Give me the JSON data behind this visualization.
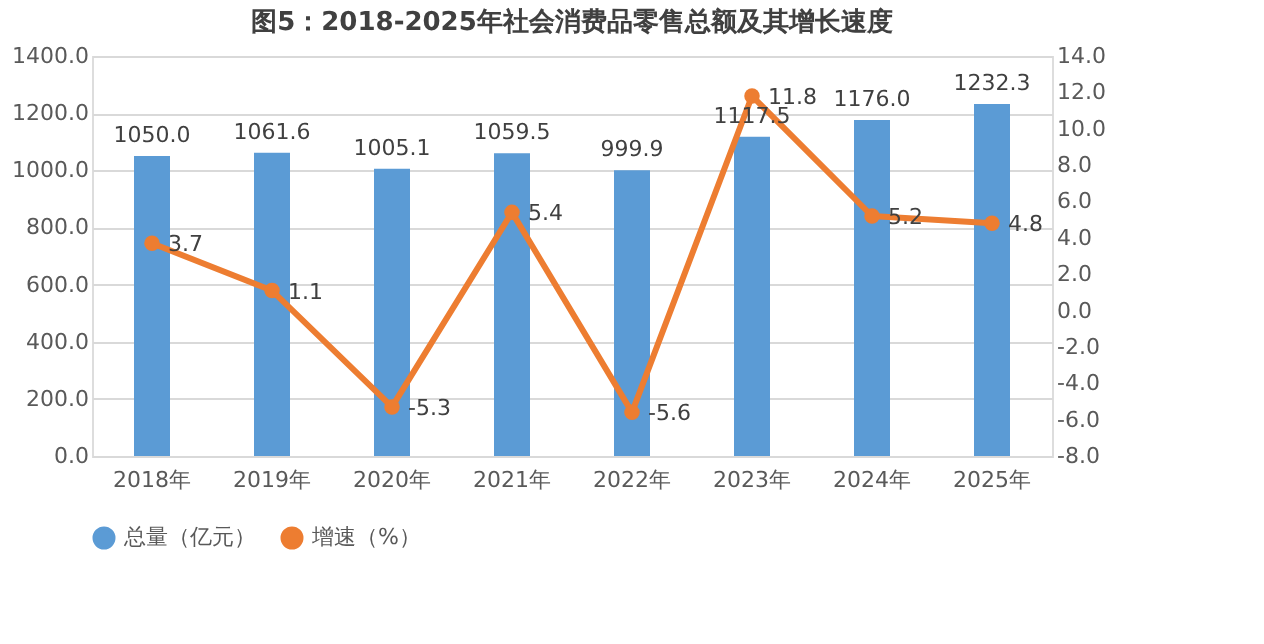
{
  "chart_data": {
    "type": "bar",
    "title": "图5：2018-2025年社会消费品零售总额及其增长速度",
    "categories": [
      "2018年",
      "2019年",
      "2020年",
      "2021年",
      "2022年",
      "2023年",
      "2024年",
      "2025年"
    ],
    "series": [
      {
        "name": "总量（亿元）",
        "color": "#5b9bd5",
        "values": [
          1050.0,
          1061.6,
          1005.1,
          1059.5,
          999.9,
          1117.5,
          1176.0,
          1232.3
        ],
        "value_labels": [
          "1050.0",
          "1061.6",
          "1005.1",
          "1059.5",
          "999.9",
          "1117.5",
          "1176.0",
          "1232.3"
        ]
      },
      {
        "name": "增速（%）",
        "type": "line",
        "axis": "y2",
        "color": "#ed7d31",
        "marker": "circle",
        "values": [
          3.7,
          1.1,
          -5.3,
          5.4,
          -5.6,
          11.8,
          5.2,
          4.8
        ],
        "value_labels": [
          "3.7",
          "1.1",
          "-5.3",
          "5.4",
          "-5.6",
          "11.8",
          "5.2",
          "4.8"
        ]
      }
    ],
    "ylim": [
      0,
      1400
    ],
    "yticks": [
      {
        "value": 0,
        "label": "0.0"
      },
      {
        "value": 200,
        "label": "200.0"
      },
      {
        "value": 400,
        "label": "400.0"
      },
      {
        "value": 600,
        "label": "600.0"
      },
      {
        "value": 800,
        "label": "800.0"
      },
      {
        "value": 1000,
        "label": "1000.0"
      },
      {
        "value": 1200,
        "label": "1200.0"
      },
      {
        "value": 1400,
        "label": "1400.0"
      }
    ],
    "y2lim": [
      -8,
      14
    ],
    "y2ticks": [
      {
        "value": -8,
        "label": "-8.0"
      },
      {
        "value": -6,
        "label": "-6.0"
      },
      {
        "value": -4,
        "label": "-4.0"
      },
      {
        "value": -2,
        "label": "-2.0"
      },
      {
        "value": 0,
        "label": "0.0"
      },
      {
        "value": 2,
        "label": "2.0"
      },
      {
        "value": 4,
        "label": "4.0"
      },
      {
        "value": 6,
        "label": "6.0"
      },
      {
        "value": 8,
        "label": "8.0"
      },
      {
        "value": 10,
        "label": "10.0"
      },
      {
        "value": 12,
        "label": "12.0"
      },
      {
        "value": 14,
        "label": "14.0"
      }
    ],
    "grid": "y",
    "legend": "bottom"
  }
}
